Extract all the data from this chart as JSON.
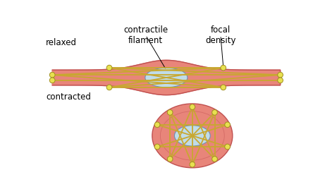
{
  "bg_color": "#ffffff",
  "cell_color": "#e8857a",
  "cell_edge_color": "#c05050",
  "nucleus_color": "#c0dce8",
  "nucleus_edge_color": "#7090b0",
  "filament_color": "#c8a830",
  "dot_color": "#e8e050",
  "dot_edge_color": "#a09020",
  "label_relaxed": "relaxed",
  "label_contracted": "contracted",
  "label_contractile": "contractile\nfilament",
  "label_focal": "focal\ndensity",
  "font_size": 8.5
}
